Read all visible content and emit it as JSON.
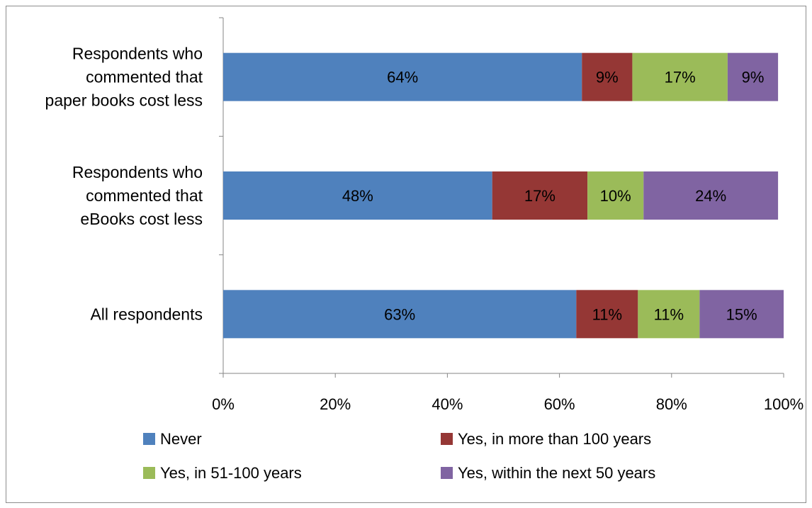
{
  "chart_data": {
    "type": "bar",
    "orientation": "horizontal",
    "stacked": "percent",
    "categories": [
      [
        "Respondents who",
        "commented that",
        "paper books cost less"
      ],
      [
        "Respondents who",
        "commented that",
        "eBooks cost less"
      ],
      [
        "All respondents"
      ]
    ],
    "series": [
      {
        "name": "Never",
        "color": "#4F81BD",
        "values": [
          64,
          48,
          63
        ],
        "labels": [
          "64%",
          "48%",
          "63%"
        ]
      },
      {
        "name": "Yes, in more than 100 years",
        "color": "#953735",
        "values": [
          9,
          17,
          11
        ],
        "labels": [
          "9%",
          "17%",
          "11%"
        ]
      },
      {
        "name": "Yes, in 51-100 years",
        "color": "#9BBB59",
        "values": [
          17,
          10,
          11
        ],
        "labels": [
          "17%",
          "10%",
          "11%"
        ]
      },
      {
        "name": "Yes, within the next 50 years",
        "color": "#8064A2",
        "values": [
          9,
          24,
          15
        ],
        "labels": [
          "9%",
          "24%",
          "15%"
        ]
      }
    ],
    "xlim": [
      0,
      100
    ],
    "xticks": [
      "0%",
      "20%",
      "40%",
      "60%",
      "80%",
      "100%"
    ],
    "grid": false,
    "legend_position": "bottom"
  }
}
